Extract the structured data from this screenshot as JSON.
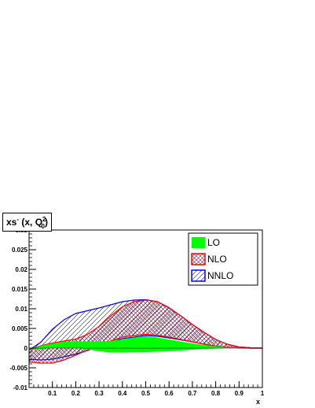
{
  "chart_data": {
    "type": "area",
    "title_main": "xs",
    "title_sup": "-",
    "title_args": "(x, Q",
    "title_q_sup": "2",
    "title_q_sub": "0",
    "title_close": ")",
    "xlabel": "x",
    "ylabel": "",
    "xlim": [
      0,
      1
    ],
    "ylim": [
      -0.01,
      0.03
    ],
    "x_ticks": [
      0.1,
      0.2,
      0.3,
      0.4,
      0.5,
      0.6,
      0.7,
      0.8,
      0.9,
      1
    ],
    "x_tick_labels": [
      "0.1",
      "0.2",
      "0.3",
      "0.4",
      "0.5",
      "0.6",
      "0.7",
      "0.8",
      "0.9",
      "1"
    ],
    "y_ticks": [
      -0.01,
      -0.005,
      0,
      0.005,
      0.01,
      0.015,
      0.02,
      0.025,
      0.03
    ],
    "y_tick_labels": [
      "-0.01",
      "-0.005",
      "0",
      "0.005",
      "0.01",
      "0.015",
      "0.02",
      "0.025",
      "0.03"
    ],
    "grid": false,
    "legend_position": "top-right",
    "series": [
      {
        "name": "LO",
        "fill": "#00ff00",
        "line": "#00ff00",
        "hatch": "solid",
        "x": [
          0.0,
          0.05,
          0.1,
          0.15,
          0.2,
          0.25,
          0.3,
          0.35,
          0.4,
          0.45,
          0.5,
          0.55,
          0.6,
          0.65,
          0.7,
          0.75,
          0.8,
          0.85,
          0.9,
          0.95,
          1.0
        ],
        "upper": [
          -0.0005,
          0.0006,
          0.0012,
          0.0016,
          0.0017,
          0.0017,
          0.0017,
          0.0018,
          0.0022,
          0.0027,
          0.003,
          0.0027,
          0.0022,
          0.0017,
          0.0012,
          0.0008,
          0.0005,
          0.0002,
          0.0001,
          0.0,
          0.0
        ],
        "lower": [
          -0.0005,
          -0.0002,
          0.0,
          0.0001,
          0.0,
          -0.0003,
          -0.0008,
          -0.0011,
          -0.0011,
          -0.001,
          -0.001,
          -0.0009,
          -0.0008,
          -0.0006,
          -0.0004,
          -0.0002,
          -0.0001,
          0.0,
          0.0,
          0.0,
          0.0
        ]
      },
      {
        "name": "NLO",
        "fill": "#ff0000",
        "line": "#ff0000",
        "hatch": "cross",
        "x": [
          0.0,
          0.05,
          0.1,
          0.15,
          0.2,
          0.25,
          0.3,
          0.35,
          0.4,
          0.45,
          0.5,
          0.55,
          0.6,
          0.65,
          0.7,
          0.75,
          0.8,
          0.85,
          0.9,
          0.95,
          1.0
        ],
        "upper": [
          -0.0005,
          0.0006,
          0.0013,
          0.0018,
          0.0023,
          0.0035,
          0.0055,
          0.0082,
          0.0105,
          0.0118,
          0.0122,
          0.0118,
          0.0103,
          0.0082,
          0.006,
          0.004,
          0.0022,
          0.001,
          0.0003,
          0.0001,
          0.0
        ],
        "lower": [
          -0.0035,
          -0.0038,
          -0.0038,
          -0.003,
          -0.0018,
          -0.0005,
          0.0008,
          0.0018,
          0.0028,
          0.0032,
          0.0035,
          0.0033,
          0.0028,
          0.0022,
          0.0016,
          0.001,
          0.0005,
          0.0002,
          0.0001,
          0.0,
          0.0
        ]
      },
      {
        "name": "NNLO",
        "fill": "#0000ff",
        "line": "#0000ff",
        "hatch": "diagonal",
        "x": [
          0.0,
          0.05,
          0.1,
          0.15,
          0.2,
          0.25,
          0.3,
          0.35,
          0.4,
          0.45,
          0.5,
          0.55,
          0.6,
          0.65,
          0.7,
          0.75,
          0.8,
          0.85,
          0.9,
          0.95,
          1.0
        ],
        "upper": [
          -0.0005,
          0.0015,
          0.0048,
          0.0072,
          0.0088,
          0.0095,
          0.0102,
          0.011,
          0.0118,
          0.0122,
          0.0123,
          0.0118,
          0.0102,
          0.0082,
          0.006,
          0.004,
          0.0022,
          0.001,
          0.0003,
          0.0001,
          0.0
        ],
        "lower": [
          -0.0028,
          -0.003,
          -0.0028,
          -0.0022,
          -0.0015,
          -0.0006,
          0.0005,
          0.0015,
          0.0024,
          0.0028,
          0.0032,
          0.003,
          0.0026,
          0.0021,
          0.0016,
          0.001,
          0.0005,
          0.0002,
          0.0001,
          0.0,
          0.0
        ]
      }
    ]
  }
}
